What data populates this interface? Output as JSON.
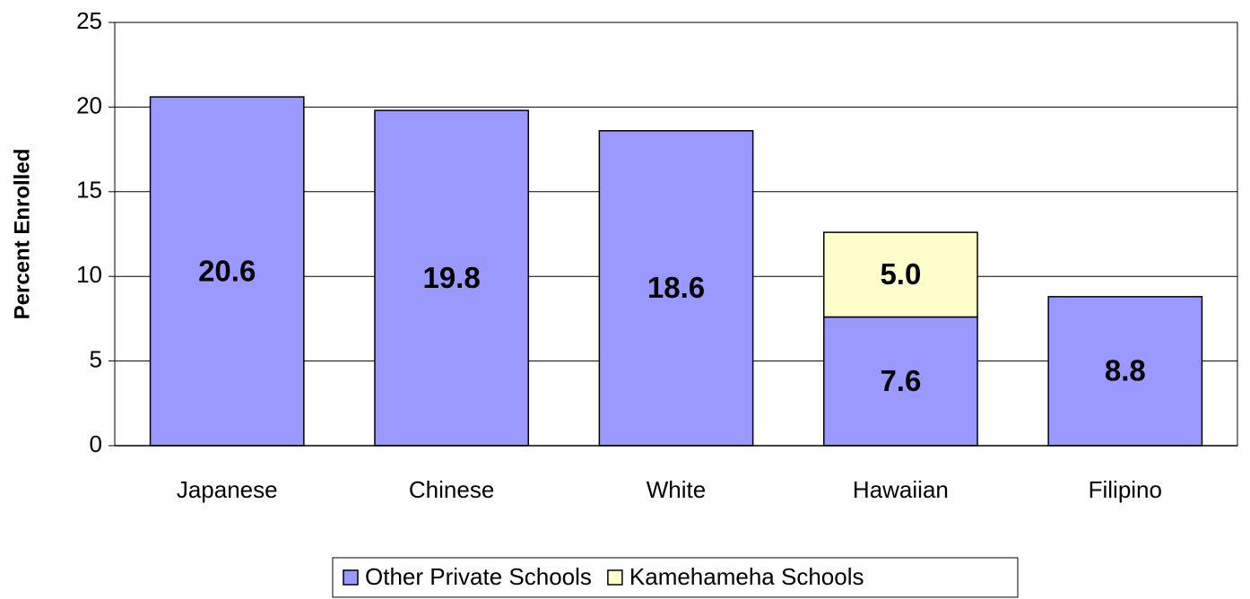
{
  "chart_data": {
    "type": "stacked_bar",
    "categories": [
      "Japanese",
      "Chinese",
      "White",
      "Hawaiian",
      "Filipino"
    ],
    "series": [
      {
        "name": "Other Private Schools",
        "color": "#9999ff",
        "values": [
          20.6,
          19.8,
          18.6,
          7.6,
          8.8
        ]
      },
      {
        "name": "Kamehameha Schools",
        "color": "#ffffcc",
        "values": [
          null,
          null,
          null,
          5.0,
          null
        ],
        "value_labels": [
          null,
          null,
          null,
          "5.0",
          null
        ]
      }
    ],
    "y_label": "Percent Enrolled",
    "ylim": [
      0,
      25
    ],
    "yticks": [
      0,
      5,
      10,
      15,
      20,
      25
    ],
    "grid": true,
    "legend": "bottom"
  }
}
